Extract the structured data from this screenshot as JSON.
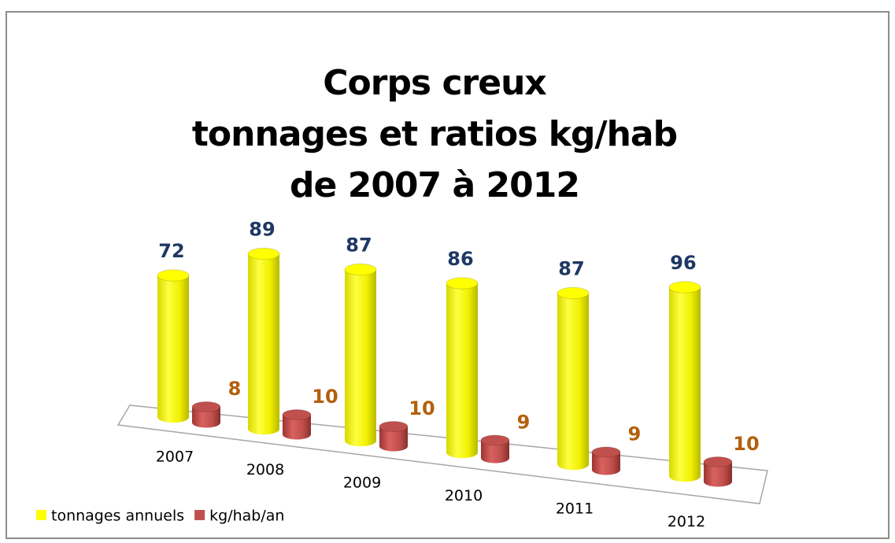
{
  "chart_data": {
    "type": "bar3d",
    "title": [
      "Corps creux",
      "tonnages et ratios kg/hab",
      "de 2007 à 2012"
    ],
    "categories": [
      "2007",
      "2008",
      "2009",
      "2010",
      "2011",
      "2012"
    ],
    "series": [
      {
        "name": "tonnages annuels",
        "color": "#ffff00",
        "label_color": "#1f3864",
        "values": [
          72,
          89,
          87,
          86,
          87,
          96
        ]
      },
      {
        "name": "kg/hab/an",
        "color": "#c0504d",
        "label_color": "#b3600e",
        "values": [
          8,
          10,
          10,
          9,
          9,
          10
        ]
      }
    ],
    "legend": "bottom-left"
  }
}
